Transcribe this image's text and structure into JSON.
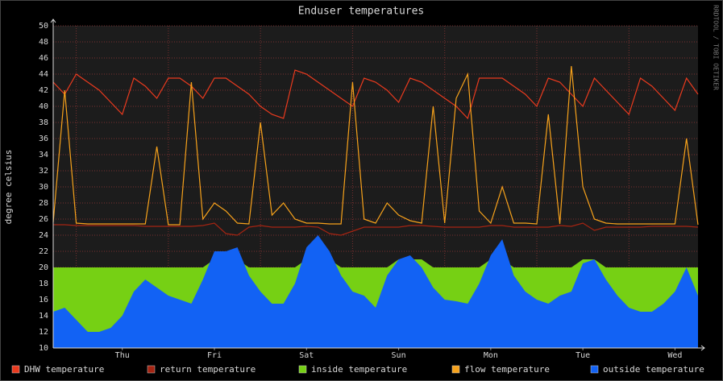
{
  "chart_data": {
    "type": "rrd",
    "title": "Enduser temperatures",
    "y_label": "degree celsius",
    "side_text": "RRDTOOL / TOBI OETIKER",
    "x": [
      0,
      3,
      6,
      9,
      12,
      15,
      18,
      21,
      24,
      27,
      30,
      33,
      36,
      39,
      42,
      45,
      48,
      51,
      54,
      57,
      60,
      63,
      66,
      69,
      72,
      75,
      78,
      81,
      84,
      87,
      90,
      93,
      96,
      99,
      102,
      105,
      108,
      111,
      114,
      117,
      120,
      123,
      126,
      129,
      132,
      135,
      138,
      141,
      144,
      147,
      150,
      153,
      156,
      159,
      162,
      165,
      168
    ],
    "xlim": [
      0,
      168
    ],
    "xticks": [
      {
        "value": 18,
        "label": "Thu"
      },
      {
        "value": 42,
        "label": "Fri"
      },
      {
        "value": 66,
        "label": "Sat"
      },
      {
        "value": 90,
        "label": "Sun"
      },
      {
        "value": 114,
        "label": "Mon"
      },
      {
        "value": 138,
        "label": "Tue"
      },
      {
        "value": 162,
        "label": "Wed"
      }
    ],
    "xgrid": [
      6,
      30,
      54,
      78,
      102,
      126,
      150
    ],
    "ylim": [
      10,
      50
    ],
    "yticks": [
      10,
      12,
      14,
      16,
      18,
      20,
      22,
      24,
      26,
      28,
      30,
      32,
      34,
      36,
      38,
      40,
      42,
      44,
      46,
      48,
      50
    ],
    "grid": true,
    "series": [
      {
        "name": "DHW temperature",
        "color": "#ea3a1e",
        "style": "line",
        "values": [
          43,
          41.5,
          44,
          43,
          42,
          40.5,
          39,
          43.5,
          42.5,
          41,
          43.5,
          43.5,
          42.5,
          41,
          43.5,
          43.5,
          42.5,
          41.5,
          40,
          39,
          38.5,
          44.5,
          44,
          43,
          42,
          41,
          40,
          43.5,
          43,
          42,
          40.5,
          43.5,
          43,
          42,
          41,
          40,
          38.5,
          43.5,
          43.5,
          43.5,
          42.5,
          41.5,
          40,
          43.5,
          43,
          41.5,
          40,
          43.5,
          42,
          40.5,
          39,
          43.5,
          42.5,
          41,
          39.5,
          43.5,
          41.5
        ]
      },
      {
        "name": "return temperature",
        "color": "#a52412",
        "style": "line",
        "values": [
          25.3,
          25.3,
          25.2,
          25.2,
          25.2,
          25.2,
          25.2,
          25.2,
          25.1,
          25.1,
          25.1,
          25.1,
          25.1,
          25.2,
          25.5,
          24.2,
          24,
          25,
          25.2,
          25,
          25,
          25,
          25.1,
          25,
          24.2,
          24,
          24.5,
          25,
          25,
          25,
          25,
          25.2,
          25.2,
          25.1,
          25,
          25,
          25,
          25,
          25.2,
          25.2,
          25,
          25,
          25,
          25,
          25.2,
          25.1,
          25.5,
          24.6,
          25,
          25,
          25,
          25,
          25.1,
          25.1,
          25.1,
          25.1,
          25
        ]
      },
      {
        "name": "inside temperature",
        "color": "#76d014",
        "style": "area",
        "values": [
          20,
          20,
          20,
          20,
          20,
          20,
          20,
          20,
          20,
          20,
          20,
          20,
          20,
          20,
          21,
          21,
          21,
          20,
          20,
          20,
          20,
          20,
          21,
          21,
          21,
          20,
          20,
          20,
          20,
          20,
          21,
          21,
          21,
          20,
          20,
          20,
          20,
          20,
          21,
          21,
          20,
          20,
          20,
          20,
          20,
          20,
          21,
          21,
          20,
          20,
          20,
          20,
          20,
          20,
          20,
          20,
          20
        ]
      },
      {
        "name": "flow temperature",
        "color": "#f7a21b",
        "style": "line",
        "values": [
          25.6,
          42,
          25.5,
          25.4,
          25.4,
          25.4,
          25.4,
          25.4,
          25.4,
          35,
          25.3,
          25.3,
          43,
          26,
          28,
          27,
          25.5,
          25.4,
          38,
          26.5,
          28,
          26,
          25.5,
          25.5,
          25.4,
          25.4,
          43,
          26,
          25.5,
          28,
          26.5,
          25.8,
          25.5,
          40,
          25.5,
          41,
          44,
          27,
          25.5,
          30,
          25.5,
          25.5,
          25.4,
          39,
          25.4,
          45,
          30,
          26,
          25.5,
          25.4,
          25.4,
          25.4,
          25.4,
          25.4,
          25.4,
          36,
          25.3
        ]
      },
      {
        "name": "outside temperature",
        "color": "#1262f4",
        "style": "area",
        "values": [
          14.5,
          15,
          13.5,
          12,
          12,
          12.5,
          14,
          17,
          18.5,
          17.5,
          16.5,
          16,
          15.5,
          18.5,
          22,
          22,
          22.5,
          19,
          17,
          15.5,
          15.5,
          18,
          22.5,
          24,
          22,
          19,
          17,
          16.5,
          15,
          19,
          21,
          21.5,
          20,
          17.5,
          16,
          15.8,
          15.5,
          18,
          21.5,
          23.5,
          19,
          17,
          16,
          15.5,
          16.5,
          17,
          20.5,
          21,
          18.5,
          16.5,
          15,
          14.5,
          14.5,
          15.5,
          17,
          20,
          16.5
        ]
      }
    ]
  }
}
